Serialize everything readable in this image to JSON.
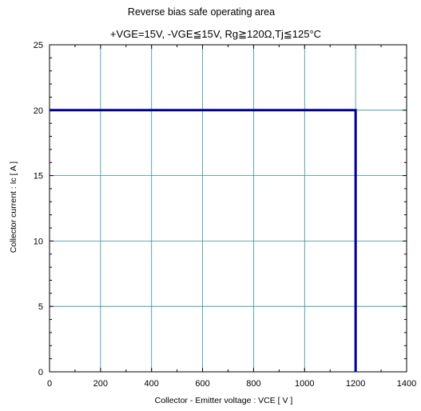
{
  "chart_data": {
    "type": "line",
    "title": "Reverse bias safe operating area",
    "subtitle": "+VGE=15V, -VGE≦15V, Rg≧120Ω,Tj≦125°C",
    "xlabel": "Collector - Emitter voltage  :  VCE  [ V ]",
    "ylabel": "Collector current  : Ic  [ A ]",
    "xlim": [
      0,
      1400
    ],
    "ylim": [
      0,
      25
    ],
    "xticks": [
      0,
      200,
      400,
      600,
      800,
      1000,
      1200,
      1400
    ],
    "yticks": [
      0,
      5,
      10,
      15,
      20,
      25
    ],
    "grid": true,
    "series": [
      {
        "points": [
          [
            0,
            20
          ],
          [
            1200,
            20
          ],
          [
            1200,
            0
          ]
        ]
      }
    ],
    "colors": {
      "series": "#00008f",
      "grid": "#2f8f9f",
      "axis": "#000000"
    }
  }
}
